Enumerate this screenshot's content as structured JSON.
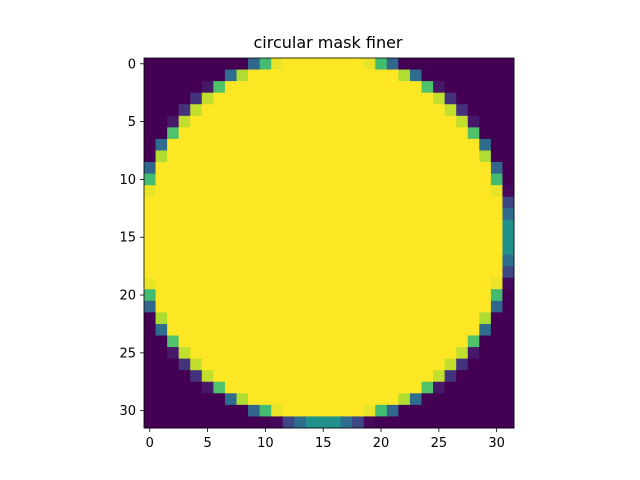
{
  "chart_data": {
    "type": "heatmap",
    "title": "circular mask finer",
    "xlabel": "",
    "ylabel": "",
    "colormap": "viridis",
    "rows": 32,
    "cols": 32,
    "xlim": [
      -0.5,
      31.5
    ],
    "ylim": [
      31.5,
      -0.5
    ],
    "x_ticks": [
      0,
      5,
      10,
      15,
      20,
      25,
      30
    ],
    "y_ticks": [
      0,
      5,
      10,
      15,
      20,
      25,
      30
    ],
    "circle_center": [
      15.5,
      15.5
    ],
    "circle_radius": 16,
    "value_range": [
      0,
      1
    ],
    "description_of_values": "fraction of each cell inside circle"
  },
  "colors": {
    "viridis_low": "#440154",
    "viridis_high": "#fde725"
  }
}
